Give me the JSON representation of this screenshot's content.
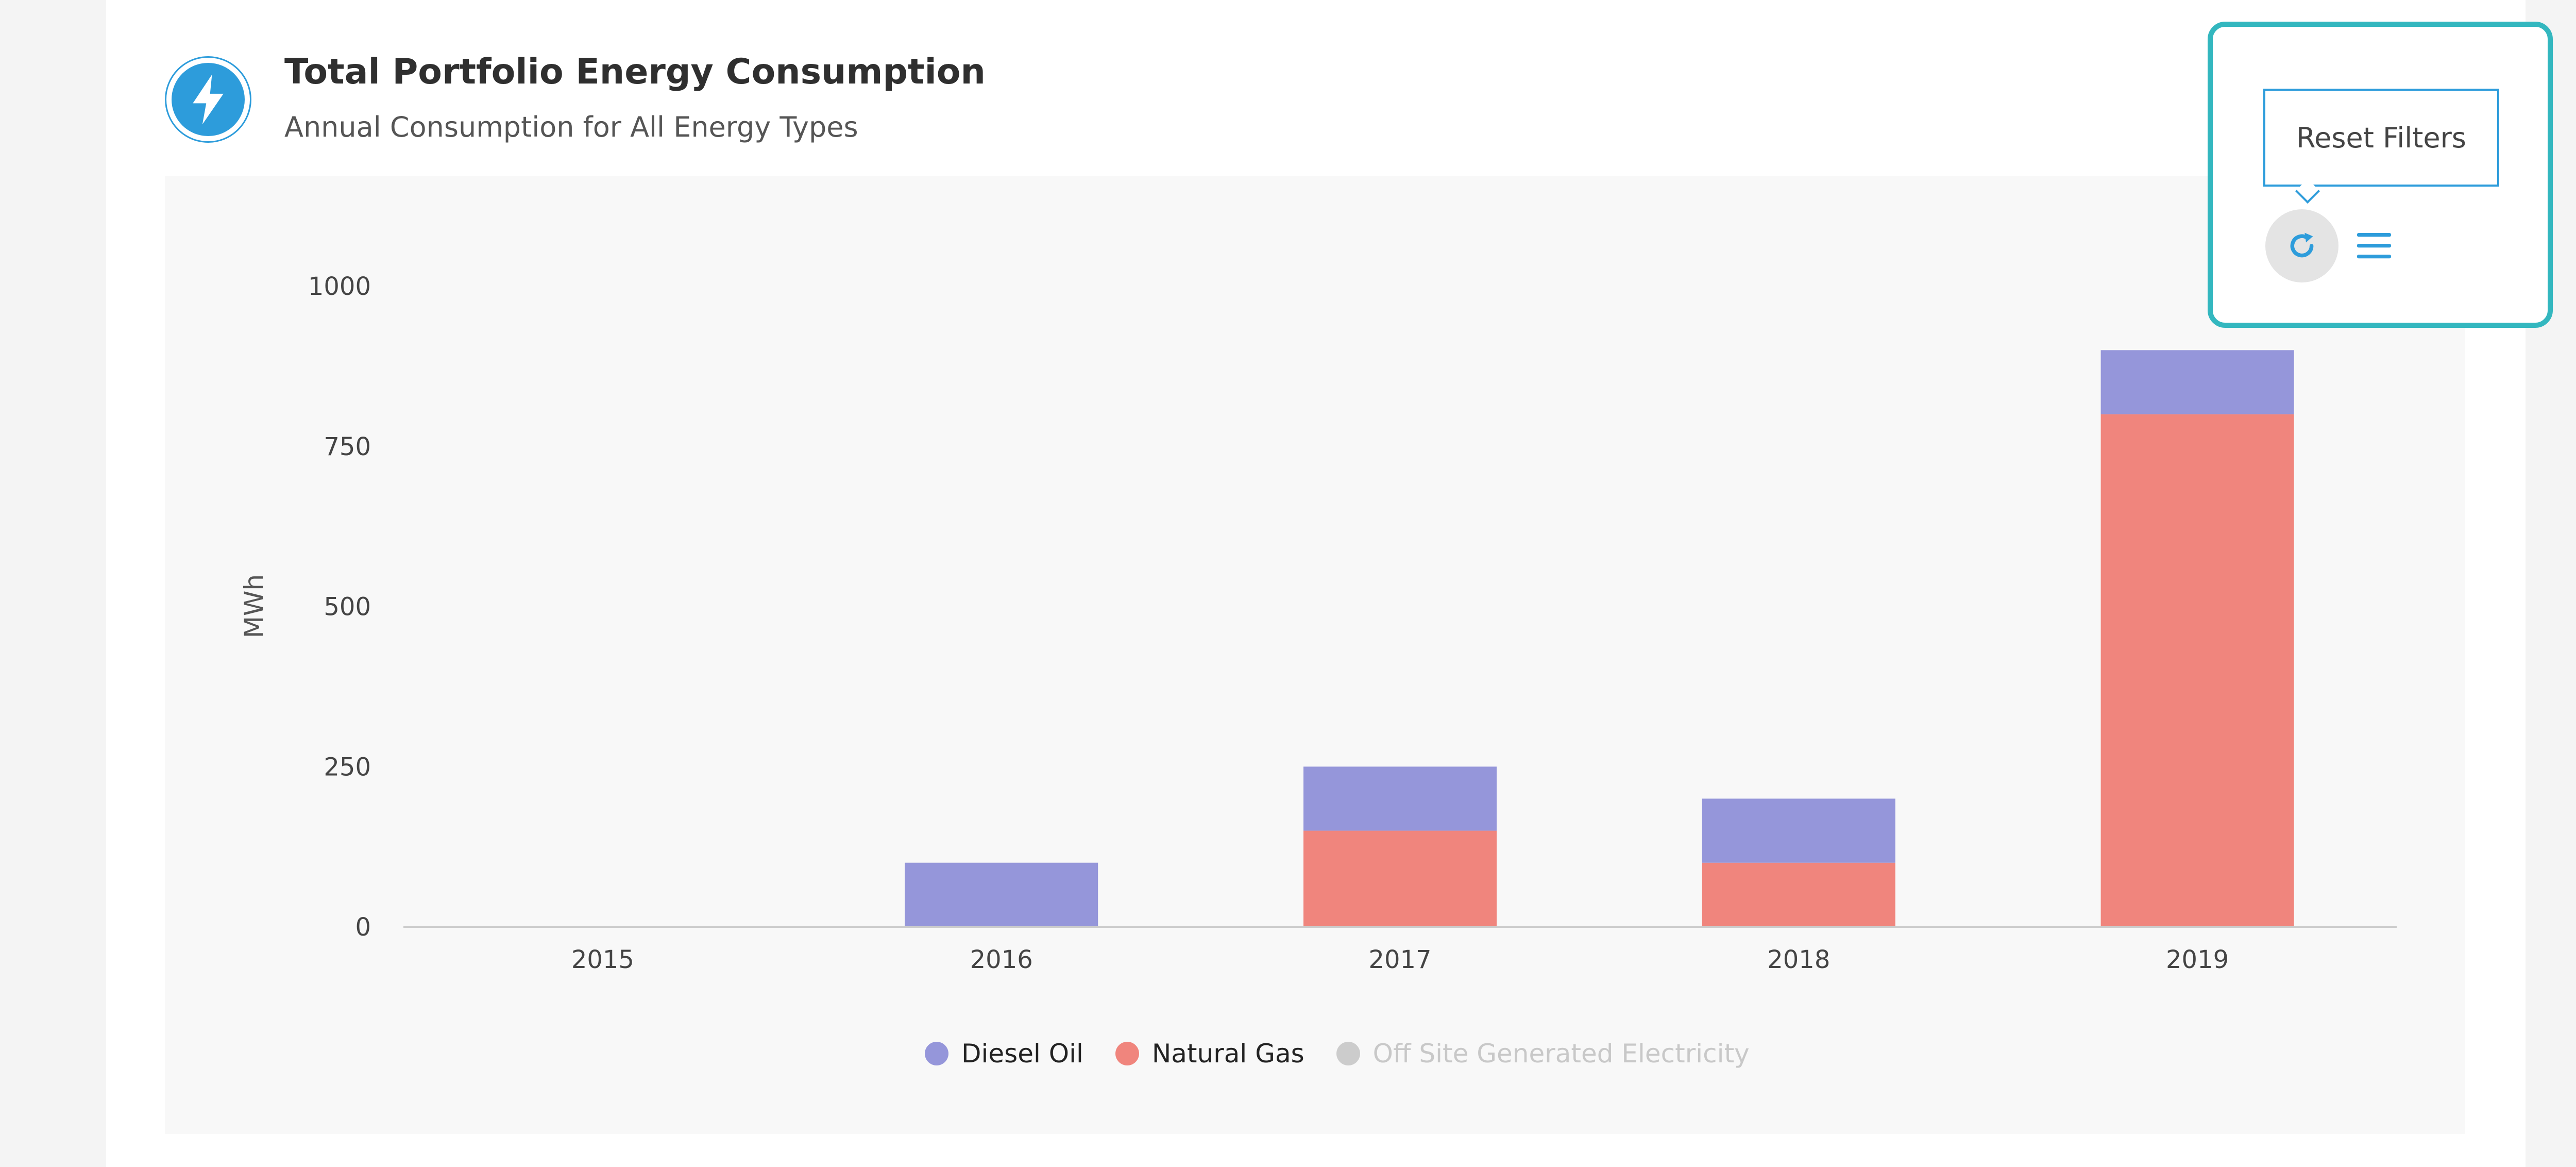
{
  "header": {
    "icon": "lightning-bolt-icon",
    "title": "Total Portfolio Energy Consumption",
    "subtitle": "Annual Consumption for All Energy Types"
  },
  "toolbar": {
    "reset_tooltip": "Reset Filters",
    "reset_icon": "refresh-icon",
    "menu_icon": "hamburger-menu-icon"
  },
  "colors": {
    "accent": "#2d9cdb",
    "highlight": "#33b7bf",
    "diesel_oil": "#9596da",
    "natural_gas": "#f0857d",
    "off_site_electricity": "#cccccc"
  },
  "chart_data": {
    "type": "bar",
    "stacked": true,
    "categories": [
      "2015",
      "2016",
      "2017",
      "2018",
      "2019"
    ],
    "series": [
      {
        "name": "Natural Gas",
        "values": [
          0,
          0,
          150,
          100,
          800
        ],
        "color": "#f0857d",
        "visible": true
      },
      {
        "name": "Diesel Oil",
        "values": [
          0,
          100,
          100,
          100,
          100
        ],
        "color": "#9596da",
        "visible": true
      },
      {
        "name": "Off Site Generated Electricity",
        "values": [
          0,
          0,
          0,
          0,
          0
        ],
        "color": "#cccccc",
        "visible": false
      }
    ],
    "ylabel": "MWh",
    "ylim": [
      0,
      1000
    ],
    "yticks": [
      0,
      250,
      500,
      750,
      1000
    ],
    "legend_position": "bottom-center",
    "grid": false
  },
  "legend": [
    {
      "label": "Diesel Oil",
      "color": "#9596da",
      "disabled": false
    },
    {
      "label": "Natural Gas",
      "color": "#f0857d",
      "disabled": false
    },
    {
      "label": "Off Site Generated Electricity",
      "color": "#cccccc",
      "disabled": true
    }
  ]
}
